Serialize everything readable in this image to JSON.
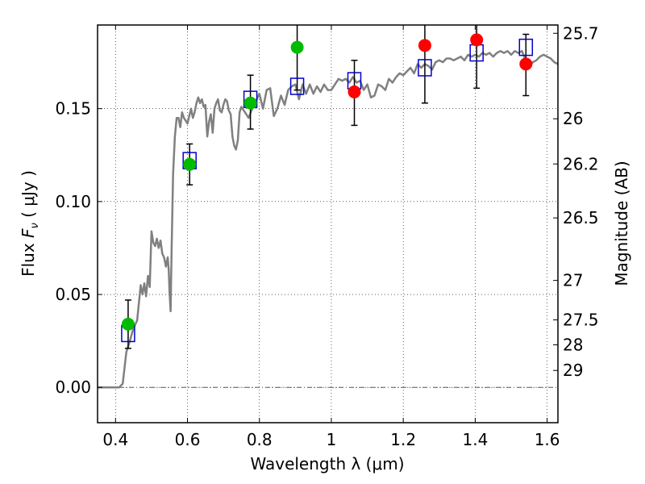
{
  "chart_data": {
    "type": "scatter",
    "xlabel": "Wavelength  λ (μm)",
    "ylabel": "Flux  F_ν  ( μJy )",
    "y2label": "Magnitude (AB)",
    "xlim": [
      0.35,
      1.63
    ],
    "ylim": [
      -0.019,
      0.195
    ],
    "grid": true,
    "x_ticks": [
      {
        "value": 0.4,
        "label": "0.4"
      },
      {
        "value": 0.6,
        "label": "0.6"
      },
      {
        "value": 0.8,
        "label": "0.8"
      },
      {
        "value": 1.0,
        "label": "1"
      },
      {
        "value": 1.2,
        "label": "1.2"
      },
      {
        "value": 1.4,
        "label": "1.4"
      },
      {
        "value": 1.6,
        "label": "1.6"
      }
    ],
    "y_ticks": [
      {
        "value": 0.0,
        "label": "0.00"
      },
      {
        "value": 0.05,
        "label": "0.05"
      },
      {
        "value": 0.1,
        "label": "0.10"
      },
      {
        "value": 0.15,
        "label": "0.15"
      }
    ],
    "mag_ticks": [
      {
        "value": 25.7,
        "label": "25.7"
      },
      {
        "value": 26.0,
        "label": "26"
      },
      {
        "value": 26.2,
        "label": "26.2"
      },
      {
        "value": 26.5,
        "label": "26.5"
      },
      {
        "value": 27.0,
        "label": "27"
      },
      {
        "value": 27.5,
        "label": "27.5"
      },
      {
        "value": 28.0,
        "label": "28"
      },
      {
        "value": 29.0,
        "label": "29"
      }
    ],
    "series": [
      {
        "kind": "line",
        "color": "#808080",
        "points": [
          [
            0.35,
            0.0
          ],
          [
            0.41,
            0.0
          ],
          [
            0.42,
            0.002
          ],
          [
            0.43,
            0.019
          ],
          [
            0.44,
            0.025
          ],
          [
            0.45,
            0.032
          ],
          [
            0.46,
            0.036
          ],
          [
            0.47,
            0.055
          ],
          [
            0.475,
            0.05
          ],
          [
            0.48,
            0.056
          ],
          [
            0.485,
            0.049
          ],
          [
            0.49,
            0.06
          ],
          [
            0.495,
            0.054
          ],
          [
            0.5,
            0.084
          ],
          [
            0.505,
            0.078
          ],
          [
            0.51,
            0.076
          ],
          [
            0.515,
            0.08
          ],
          [
            0.52,
            0.075
          ],
          [
            0.525,
            0.079
          ],
          [
            0.53,
            0.072
          ],
          [
            0.535,
            0.07
          ],
          [
            0.54,
            0.065
          ],
          [
            0.545,
            0.07
          ],
          [
            0.548,
            0.063
          ],
          [
            0.55,
            0.052
          ],
          [
            0.553,
            0.041
          ],
          [
            0.556,
            0.075
          ],
          [
            0.56,
            0.115
          ],
          [
            0.565,
            0.135
          ],
          [
            0.57,
            0.145
          ],
          [
            0.575,
            0.145
          ],
          [
            0.58,
            0.14
          ],
          [
            0.585,
            0.148
          ],
          [
            0.59,
            0.145
          ],
          [
            0.6,
            0.142
          ],
          [
            0.61,
            0.15
          ],
          [
            0.615,
            0.145
          ],
          [
            0.62,
            0.148
          ],
          [
            0.625,
            0.153
          ],
          [
            0.63,
            0.156
          ],
          [
            0.635,
            0.153
          ],
          [
            0.64,
            0.155
          ],
          [
            0.645,
            0.151
          ],
          [
            0.65,
            0.152
          ],
          [
            0.655,
            0.135
          ],
          [
            0.66,
            0.143
          ],
          [
            0.665,
            0.147
          ],
          [
            0.67,
            0.137
          ],
          [
            0.675,
            0.15
          ],
          [
            0.68,
            0.153
          ],
          [
            0.685,
            0.155
          ],
          [
            0.69,
            0.149
          ],
          [
            0.695,
            0.148
          ],
          [
            0.7,
            0.152
          ],
          [
            0.705,
            0.155
          ],
          [
            0.71,
            0.154
          ],
          [
            0.715,
            0.149
          ],
          [
            0.72,
            0.147
          ],
          [
            0.725,
            0.135
          ],
          [
            0.73,
            0.13
          ],
          [
            0.735,
            0.128
          ],
          [
            0.74,
            0.133
          ],
          [
            0.745,
            0.148
          ],
          [
            0.75,
            0.151
          ],
          [
            0.76,
            0.148
          ],
          [
            0.77,
            0.145
          ],
          [
            0.78,
            0.15
          ],
          [
            0.79,
            0.154
          ],
          [
            0.8,
            0.158
          ],
          [
            0.81,
            0.15
          ],
          [
            0.82,
            0.16
          ],
          [
            0.83,
            0.161
          ],
          [
            0.84,
            0.146
          ],
          [
            0.85,
            0.15
          ],
          [
            0.86,
            0.157
          ],
          [
            0.87,
            0.152
          ],
          [
            0.88,
            0.16
          ],
          [
            0.89,
            0.162
          ],
          [
            0.9,
            0.163
          ],
          [
            0.91,
            0.155
          ],
          [
            0.92,
            0.163
          ],
          [
            0.93,
            0.158
          ],
          [
            0.94,
            0.163
          ],
          [
            0.95,
            0.158
          ],
          [
            0.96,
            0.162
          ],
          [
            0.97,
            0.159
          ],
          [
            0.98,
            0.163
          ],
          [
            0.99,
            0.16
          ],
          [
            1.0,
            0.16
          ],
          [
            1.01,
            0.163
          ],
          [
            1.02,
            0.166
          ],
          [
            1.03,
            0.165
          ],
          [
            1.04,
            0.166
          ],
          [
            1.05,
            0.164
          ],
          [
            1.06,
            0.167
          ],
          [
            1.07,
            0.164
          ],
          [
            1.08,
            0.165
          ],
          [
            1.09,
            0.16
          ],
          [
            1.1,
            0.163
          ],
          [
            1.11,
            0.156
          ],
          [
            1.12,
            0.157
          ],
          [
            1.13,
            0.163
          ],
          [
            1.14,
            0.162
          ],
          [
            1.15,
            0.16
          ],
          [
            1.16,
            0.166
          ],
          [
            1.17,
            0.164
          ],
          [
            1.18,
            0.167
          ],
          [
            1.19,
            0.169
          ],
          [
            1.2,
            0.168
          ],
          [
            1.21,
            0.17
          ],
          [
            1.22,
            0.172
          ],
          [
            1.23,
            0.169
          ],
          [
            1.24,
            0.174
          ],
          [
            1.25,
            0.172
          ],
          [
            1.26,
            0.174
          ],
          [
            1.27,
            0.173
          ],
          [
            1.28,
            0.171
          ],
          [
            1.29,
            0.175
          ],
          [
            1.3,
            0.176
          ],
          [
            1.31,
            0.175
          ],
          [
            1.32,
            0.177
          ],
          [
            1.33,
            0.177
          ],
          [
            1.34,
            0.176
          ],
          [
            1.35,
            0.177
          ],
          [
            1.36,
            0.178
          ],
          [
            1.37,
            0.176
          ],
          [
            1.38,
            0.179
          ],
          [
            1.39,
            0.178
          ],
          [
            1.4,
            0.179
          ],
          [
            1.41,
            0.178
          ],
          [
            1.42,
            0.18
          ],
          [
            1.43,
            0.179
          ],
          [
            1.44,
            0.18
          ],
          [
            1.45,
            0.178
          ],
          [
            1.46,
            0.18
          ],
          [
            1.47,
            0.181
          ],
          [
            1.48,
            0.18
          ],
          [
            1.49,
            0.181
          ],
          [
            1.5,
            0.179
          ],
          [
            1.51,
            0.181
          ],
          [
            1.52,
            0.18
          ],
          [
            1.53,
            0.181
          ],
          [
            1.54,
            0.176
          ],
          [
            1.55,
            0.172
          ],
          [
            1.56,
            0.175
          ],
          [
            1.57,
            0.176
          ],
          [
            1.58,
            0.178
          ],
          [
            1.59,
            0.179
          ],
          [
            1.6,
            0.178
          ],
          [
            1.61,
            0.177
          ],
          [
            1.62,
            0.175
          ],
          [
            1.63,
            0.174
          ]
        ]
      },
      {
        "kind": "model-square",
        "color": "#0000cc",
        "points": [
          {
            "x": 0.435,
            "y": 0.029
          },
          {
            "x": 0.606,
            "y": 0.122
          },
          {
            "x": 0.775,
            "y": 0.155
          },
          {
            "x": 0.905,
            "y": 0.162
          },
          {
            "x": 1.064,
            "y": 0.165
          },
          {
            "x": 1.26,
            "y": 0.172
          },
          {
            "x": 1.404,
            "y": 0.18
          },
          {
            "x": 1.541,
            "y": 0.183
          }
        ]
      },
      {
        "kind": "errorbar",
        "color": "#000000",
        "points": [
          {
            "x": 0.435,
            "low": 0.021,
            "high": 0.047
          },
          {
            "x": 0.606,
            "low": 0.109,
            "high": 0.131
          },
          {
            "x": 0.775,
            "low": 0.139,
            "high": 0.168
          },
          {
            "x": 0.905,
            "low": 0.16,
            "high": 0.195
          },
          {
            "x": 1.064,
            "low": 0.141,
            "high": 0.176
          },
          {
            "x": 1.26,
            "low": 0.153,
            "high": 0.195
          },
          {
            "x": 1.404,
            "low": 0.161,
            "high": 0.195
          },
          {
            "x": 1.541,
            "low": 0.157,
            "high": 0.19
          }
        ]
      },
      {
        "kind": "detection",
        "color": "#00bb00",
        "points": [
          {
            "x": 0.435,
            "y": 0.034
          },
          {
            "x": 0.606,
            "y": 0.12
          },
          {
            "x": 0.775,
            "y": 0.153
          },
          {
            "x": 0.905,
            "y": 0.183
          }
        ]
      },
      {
        "kind": "detection-alt",
        "color": "#ff0000",
        "points": [
          {
            "x": 1.064,
            "y": 0.159
          },
          {
            "x": 1.26,
            "y": 0.184
          },
          {
            "x": 1.404,
            "y": 0.187
          },
          {
            "x": 1.541,
            "y": 0.174
          }
        ]
      }
    ]
  }
}
